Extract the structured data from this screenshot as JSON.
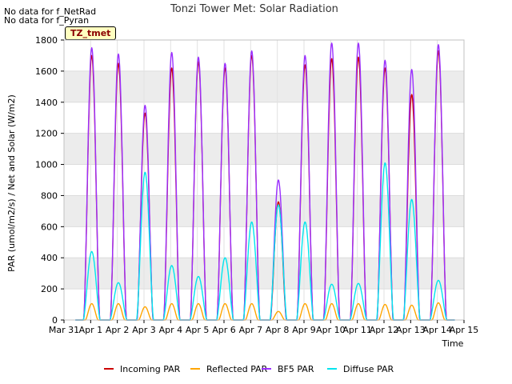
{
  "notes": [
    "No data for f_NetRad",
    "No data for f_Pyran"
  ],
  "site_tag": "TZ_tmet",
  "chart_data": {
    "type": "line",
    "title": "Tonzi Tower Met: Solar Radiation",
    "xlabel": "Time",
    "ylabel": "PAR (umol/m2/s) / Net and Solar (W/m2)",
    "ylim": [
      0,
      1800
    ],
    "yticks": [
      0,
      200,
      400,
      600,
      800,
      1000,
      1200,
      1400,
      1600,
      1800
    ],
    "xlim": [
      0,
      15
    ],
    "xtick_labels": [
      "Mar 31",
      "Apr 1",
      "Apr 2",
      "Apr 3",
      "Apr 4",
      "Apr 5",
      "Apr 6",
      "Apr 7",
      "Apr 8",
      "Apr 9",
      "Apr 10",
      "Apr 11",
      "Apr 12",
      "Apr 13",
      "Apr 14",
      "Apr 15"
    ],
    "days": [
      1,
      2,
      3,
      4,
      5,
      6,
      7,
      8,
      9,
      10,
      11,
      12,
      13,
      14
    ],
    "series": [
      {
        "name": "Incoming PAR",
        "color": "#cc0000",
        "daily_peak": [
          1700,
          1650,
          1330,
          1620,
          1660,
          1620,
          1700,
          760,
          1640,
          1680,
          1690,
          1620,
          1450,
          1730
        ]
      },
      {
        "name": "Reflected PAR",
        "color": "#ffa500",
        "daily_peak": [
          105,
          105,
          85,
          105,
          105,
          105,
          105,
          55,
          105,
          105,
          105,
          100,
          95,
          110
        ]
      },
      {
        "name": "BF5 PAR",
        "color": "#9b30ff",
        "daily_peak": [
          1750,
          1710,
          1380,
          1720,
          1690,
          1650,
          1730,
          900,
          1700,
          1780,
          1780,
          1670,
          1610,
          1770
        ]
      },
      {
        "name": "Diffuse PAR",
        "color": "#00e5ee",
        "daily_peak": [
          440,
          240,
          950,
          350,
          280,
          400,
          630,
          740,
          630,
          230,
          235,
          1010,
          775,
          255
        ]
      }
    ]
  }
}
